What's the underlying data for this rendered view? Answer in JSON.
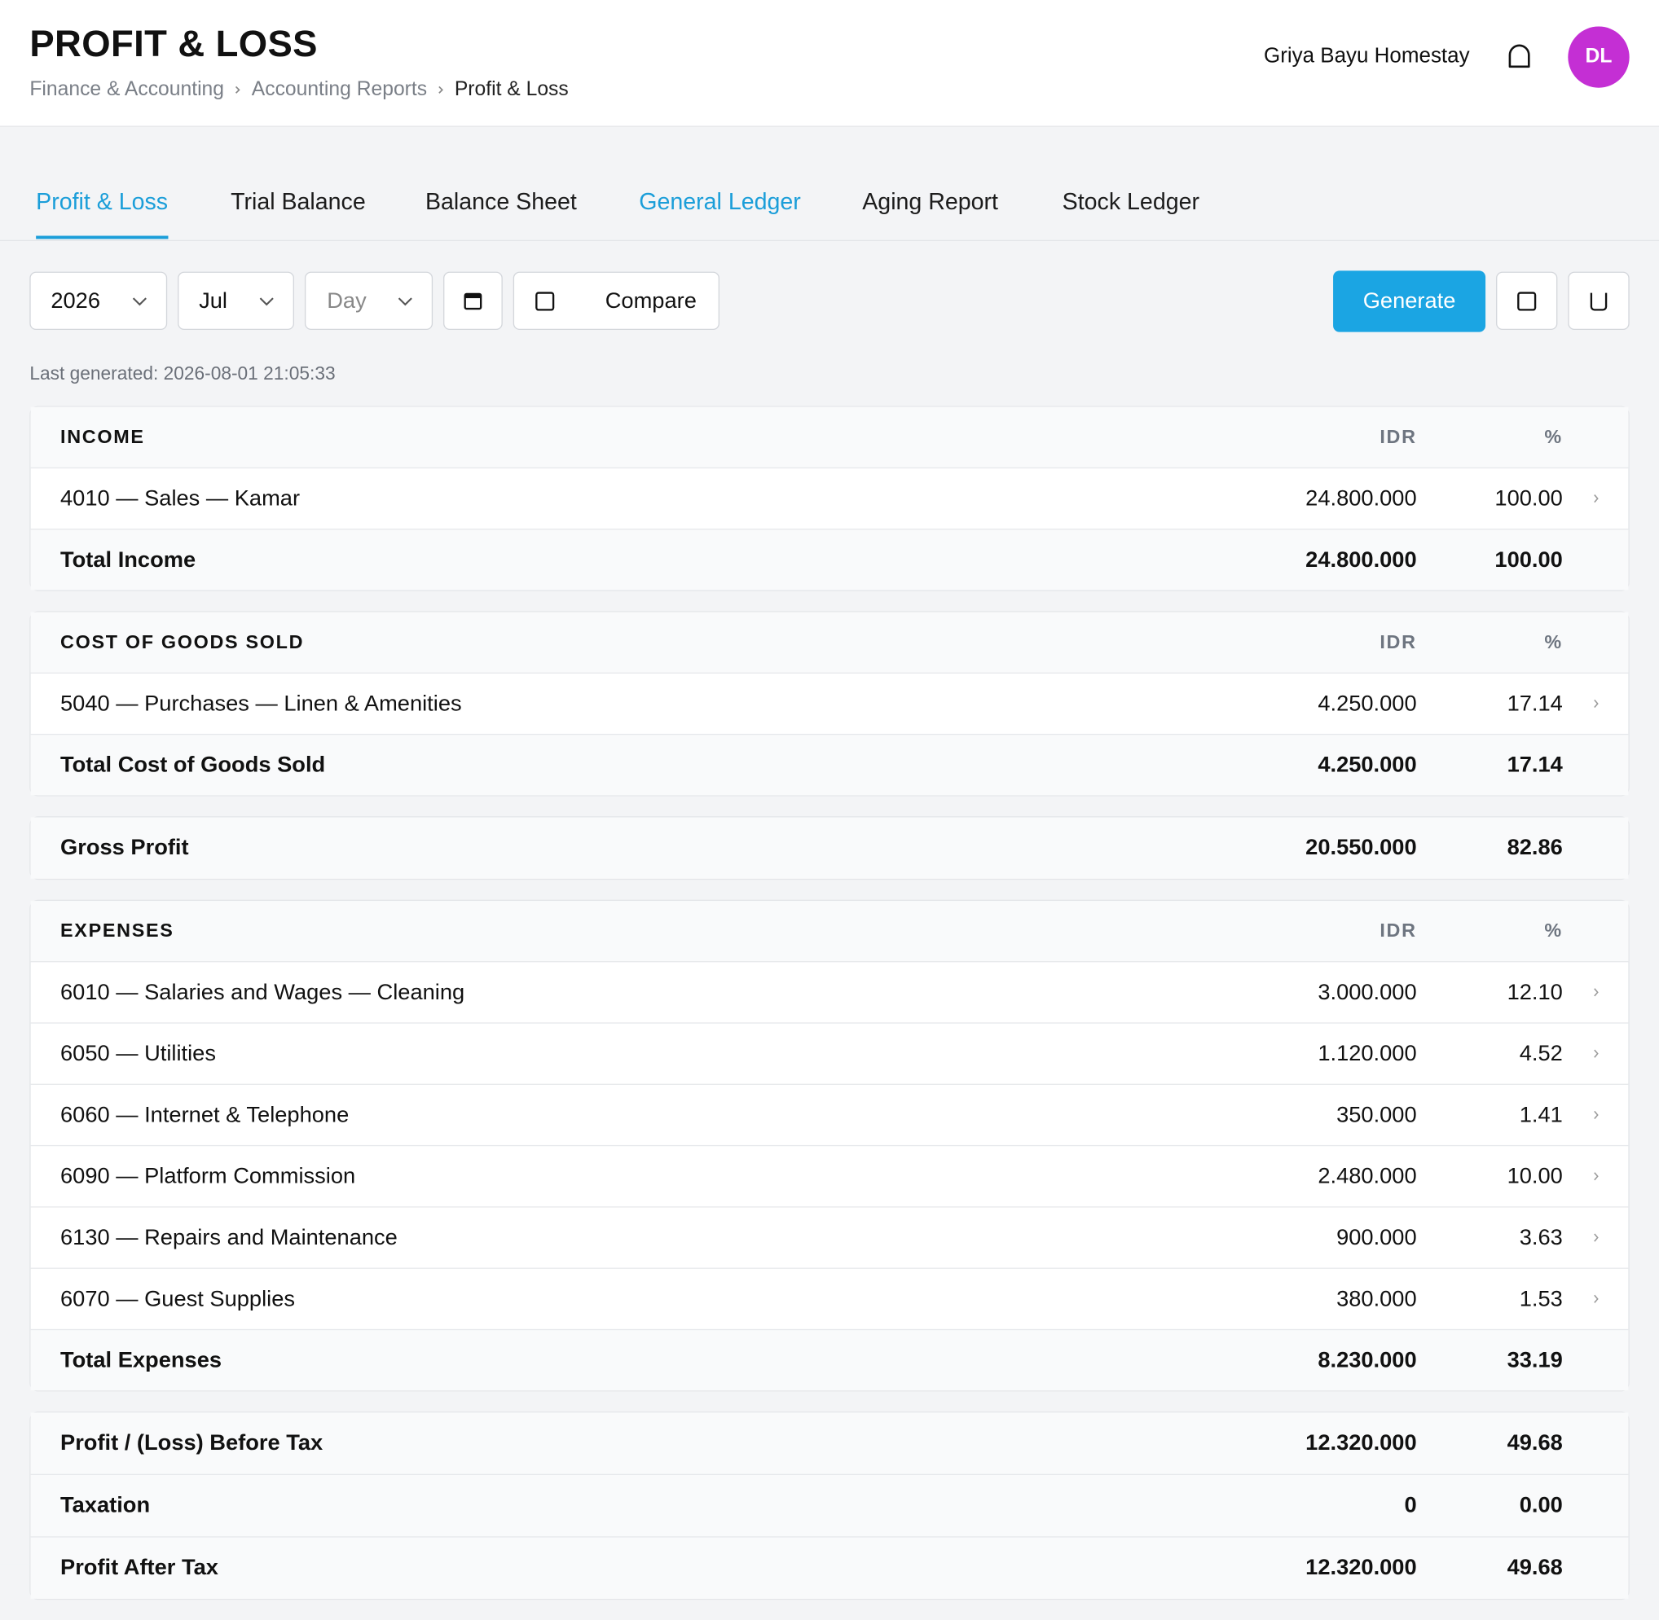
{
  "header": {
    "title": "PROFIT & LOSS",
    "breadcrumbs": [
      "Finance & Accounting",
      "Accounting Reports",
      "Profit & Loss"
    ],
    "user": "Griya Bayu Homestay",
    "avatar": "DL"
  },
  "tabs": [
    "Profit & Loss",
    "Trial Balance",
    "Balance Sheet",
    "General Ledger",
    "Aging Report",
    "Stock Ledger"
  ],
  "filters": {
    "year": "2026",
    "month": "Jul",
    "period": "Day",
    "compare": "Compare",
    "generate": "Generate"
  },
  "last_generated": "Last generated: 2026-08-01 21:05:33",
  "cards": [
    {
      "title": "INCOME",
      "columns": [
        "IDR",
        "%"
      ],
      "rows": [
        {
          "label": "4010 — Sales — Kamar",
          "amount": "24.800.000",
          "percent": "100.00"
        }
      ],
      "totals": [
        {
          "label": "Total Income",
          "amount": "24.800.000",
          "percent": "100.00"
        }
      ]
    },
    {
      "title": "COST OF GOODS SOLD",
      "columns": [
        "IDR",
        "%"
      ],
      "rows": [
        {
          "label": "5040 — Purchases — Linen & Amenities",
          "amount": "4.250.000",
          "percent": "17.14"
        }
      ],
      "totals": [
        {
          "label": "Total Cost of Goods Sold",
          "amount": "4.250.000",
          "percent": "17.14"
        }
      ]
    },
    {
      "totals": [
        {
          "label": "Gross Profit",
          "amount": "20.550.000",
          "percent": "82.86"
        }
      ]
    },
    {
      "title": "EXPENSES",
      "columns": [
        "IDR",
        "%"
      ],
      "rows": [
        {
          "label": "6010 — Salaries and Wages — Cleaning",
          "amount": "3.000.000",
          "percent": "12.10"
        },
        {
          "label": "6050 — Utilities",
          "amount": "1.120.000",
          "percent": "4.52"
        },
        {
          "label": "6060 — Internet & Telephone",
          "amount": "350.000",
          "percent": "1.41"
        },
        {
          "label": "6090 — Platform Commission",
          "amount": "2.480.000",
          "percent": "10.00"
        },
        {
          "label": "6130 — Repairs and Maintenance",
          "amount": "900.000",
          "percent": "3.63"
        },
        {
          "label": "6070 — Guest Supplies",
          "amount": "380.000",
          "percent": "1.53"
        }
      ],
      "totals": [
        {
          "label": "Total Expenses",
          "amount": "8.230.000",
          "percent": "33.19"
        }
      ]
    },
    {
      "totals": [
        {
          "label": "Profit / (Loss) Before Tax",
          "amount": "12.320.000",
          "percent": "49.68"
        },
        {
          "label": "Taxation",
          "amount": "0",
          "percent": "0.00"
        },
        {
          "label": "Profit After Tax",
          "amount": "12.320.000",
          "percent": "49.68"
        }
      ]
    }
  ]
}
